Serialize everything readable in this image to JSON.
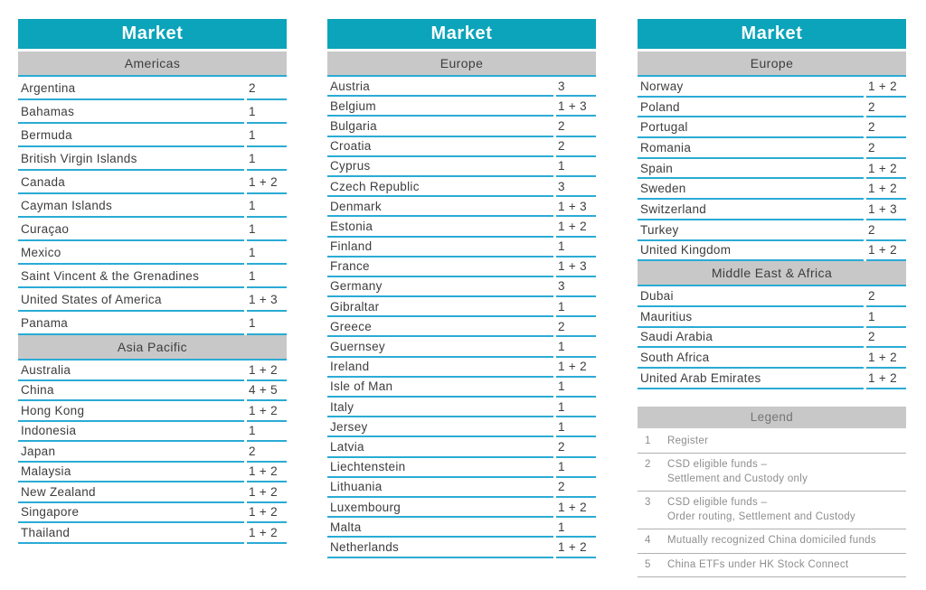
{
  "colors": {
    "teal_header": "#0ba4ba",
    "row_rule_cyan": "#2aabd5",
    "section_band_gray": "#c8c8c8",
    "body_text": "#3d3d3d",
    "legend_text": "#8d8d8d"
  },
  "tables": [
    {
      "title": "Market",
      "sections": [
        {
          "name": "Americas",
          "rows": [
            {
              "market": "Argentina",
              "services": "2"
            },
            {
              "market": "Bahamas",
              "services": "1"
            },
            {
              "market": "Bermuda",
              "services": "1"
            },
            {
              "market": "British Virgin Islands",
              "services": "1"
            },
            {
              "market": "Canada",
              "services": "1 + 2"
            },
            {
              "market": "Cayman Islands",
              "services": "1"
            },
            {
              "market": "Curaçao",
              "services": "1"
            },
            {
              "market": "Mexico",
              "services": "1"
            },
            {
              "market": "Saint Vincent & the Grenadines",
              "services": "1"
            },
            {
              "market": "United States of America",
              "services": "1 + 3"
            },
            {
              "market": "Panama",
              "services": "1"
            }
          ]
        },
        {
          "name": "Asia Pacific",
          "rows": [
            {
              "market": "Australia",
              "services": "1 + 2"
            },
            {
              "market": "China",
              "services": "4 + 5"
            },
            {
              "market": "Hong Kong",
              "services": "1 + 2"
            },
            {
              "market": "Indonesia",
              "services": "1"
            },
            {
              "market": "Japan",
              "services": "2"
            },
            {
              "market": "Malaysia",
              "services": "1 + 2"
            },
            {
              "market": "New Zealand",
              "services": "1 + 2"
            },
            {
              "market": "Singapore",
              "services": "1 + 2"
            },
            {
              "market": "Thailand",
              "services": "1 + 2"
            }
          ]
        }
      ]
    },
    {
      "title": "Market",
      "sections": [
        {
          "name": "Europe",
          "rows": [
            {
              "market": "Austria",
              "services": "3"
            },
            {
              "market": "Belgium",
              "services": "1 + 3"
            },
            {
              "market": "Bulgaria",
              "services": "2"
            },
            {
              "market": "Croatia",
              "services": "2"
            },
            {
              "market": "Cyprus",
              "services": "1"
            },
            {
              "market": "Czech Republic",
              "services": "3"
            },
            {
              "market": "Denmark",
              "services": "1 + 3"
            },
            {
              "market": "Estonia",
              "services": "1 + 2"
            },
            {
              "market": "Finland",
              "services": "1"
            },
            {
              "market": "France",
              "services": "1 + 3"
            },
            {
              "market": "Germany",
              "services": "3"
            },
            {
              "market": "Gibraltar",
              "services": "1"
            },
            {
              "market": "Greece",
              "services": "2"
            },
            {
              "market": "Guernsey",
              "services": "1"
            },
            {
              "market": "Ireland",
              "services": "1 + 2"
            },
            {
              "market": "Isle of Man",
              "services": "1"
            },
            {
              "market": "Italy",
              "services": "1"
            },
            {
              "market": "Jersey",
              "services": "1"
            },
            {
              "market": "Latvia",
              "services": "2"
            },
            {
              "market": "Liechtenstein",
              "services": "1"
            },
            {
              "market": "Lithuania",
              "services": "2"
            },
            {
              "market": "Luxembourg",
              "services": "1 + 2"
            },
            {
              "market": "Malta",
              "services": "1"
            },
            {
              "market": "Netherlands",
              "services": "1 + 2"
            }
          ]
        }
      ]
    },
    {
      "title": "Market",
      "sections": [
        {
          "name": "Europe",
          "rows": [
            {
              "market": "Norway",
              "services": "1 + 2"
            },
            {
              "market": "Poland",
              "services": "2"
            },
            {
              "market": "Portugal",
              "services": "2"
            },
            {
              "market": "Romania",
              "services": "2"
            },
            {
              "market": "Spain",
              "services": "1 + 2"
            },
            {
              "market": "Sweden",
              "services": "1 + 2"
            },
            {
              "market": "Switzerland",
              "services": "1 + 3"
            },
            {
              "market": "Turkey",
              "services": "2"
            },
            {
              "market": "United Kingdom",
              "services": "1 + 2"
            }
          ]
        },
        {
          "name": "Middle East & Africa",
          "rows": [
            {
              "market": "Dubai",
              "services": "2"
            },
            {
              "market": "Mauritius",
              "services": "1"
            },
            {
              "market": "Saudi Arabia",
              "services": "2"
            },
            {
              "market": "South Africa",
              "services": "1 + 2"
            },
            {
              "market": "United Arab Emirates",
              "services": "1 + 2"
            }
          ]
        }
      ]
    }
  ],
  "legend": {
    "title": "Legend",
    "items": [
      {
        "key": "1",
        "label": "Register"
      },
      {
        "key": "2",
        "label": "CSD eligible funds –\nSettlement and Custody only"
      },
      {
        "key": "3",
        "label": "CSD eligible funds –\nOrder routing, Settlement and Custody"
      },
      {
        "key": "4",
        "label": "Mutually recognized China domiciled funds"
      },
      {
        "key": "5",
        "label": "China ETFs under HK Stock Connect"
      }
    ]
  }
}
